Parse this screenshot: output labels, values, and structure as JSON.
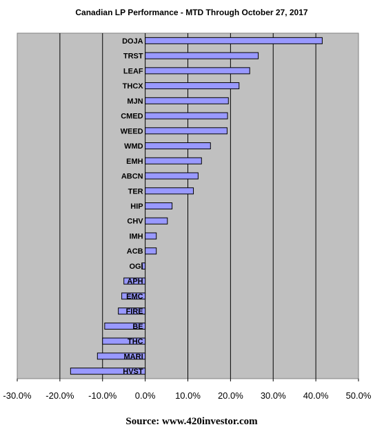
{
  "chart_data": {
    "type": "bar",
    "orientation": "horizontal",
    "title": "Canadian LP Performance - MTD Through October 27, 2017",
    "categories": [
      "DOJA",
      "TRST",
      "LEAF",
      "THCX",
      "MJN",
      "CMED",
      "WEED",
      "WMD",
      "EMH",
      "ABCN",
      "TER",
      "HIP",
      "CHV",
      "IMH",
      "ACB",
      "OGI",
      "APH",
      "EMC",
      "FIRE",
      "BE",
      "THC",
      "MARI",
      "HVST"
    ],
    "values": [
      41.5,
      26.5,
      24.5,
      22.0,
      19.5,
      19.3,
      19.2,
      15.3,
      13.2,
      12.4,
      11.3,
      6.3,
      5.2,
      2.6,
      2.6,
      -0.8,
      -5.0,
      -5.5,
      -6.3,
      -9.5,
      -10.0,
      -11.2,
      -17.5
    ],
    "xlim": [
      -30,
      50
    ],
    "xticks": [
      "-30.0%",
      "-20.0%",
      "-10.0%",
      "0.0%",
      "10.0%",
      "20.0%",
      "30.0%",
      "40.0%",
      "50.0%"
    ],
    "grid": true,
    "bar_color": "#9999ff",
    "plot_background": "#c0c0c0"
  },
  "source": "Source: www.420investor.com"
}
